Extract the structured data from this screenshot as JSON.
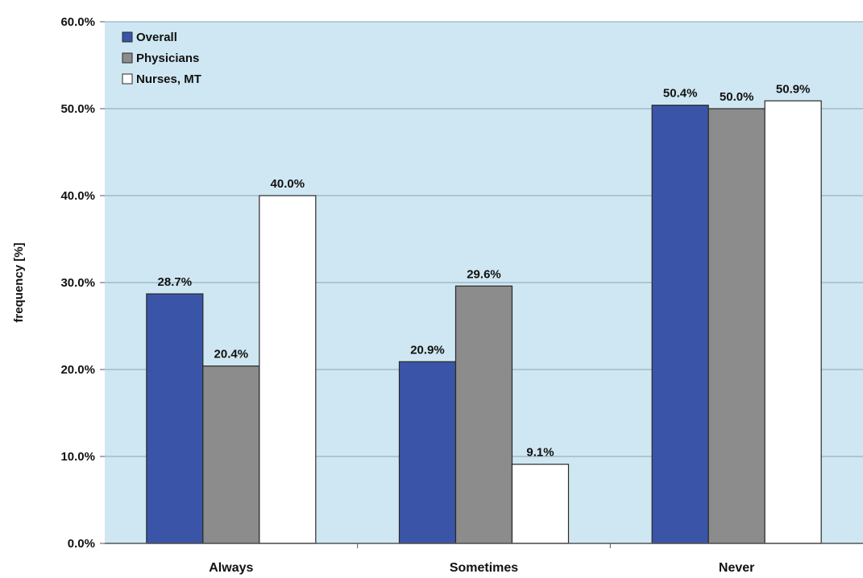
{
  "chart_data": {
    "type": "bar",
    "categories": [
      "Always",
      "Sometimes",
      "Never"
    ],
    "series": [
      {
        "name": "Overall",
        "values": [
          28.7,
          20.9,
          50.4
        ],
        "labels": [
          "28.7%",
          "20.9%",
          "50.4%"
        ],
        "color": "#3a55a8"
      },
      {
        "name": "Physicians",
        "values": [
          20.4,
          29.6,
          50.0
        ],
        "labels": [
          "20.4%",
          "29.6%",
          "50.0%"
        ],
        "color": "#8c8c8c"
      },
      {
        "name": "Nurses, MT",
        "values": [
          40.0,
          9.1,
          50.9
        ],
        "labels": [
          "40.0%",
          "9.1%",
          "50.9%"
        ],
        "color": "#ffffff"
      }
    ],
    "yticks": [
      "0.0%",
      "10.0%",
      "20.0%",
      "30.0%",
      "40.0%",
      "50.0%",
      "60.0%"
    ],
    "ylim": [
      0,
      60
    ],
    "ylabel": "frequency [%]",
    "xlabel": "",
    "title": "",
    "grid": true,
    "legend": "top-left",
    "plot_background": "#cfe7f2",
    "gridline_color": "#8aa6b4"
  }
}
